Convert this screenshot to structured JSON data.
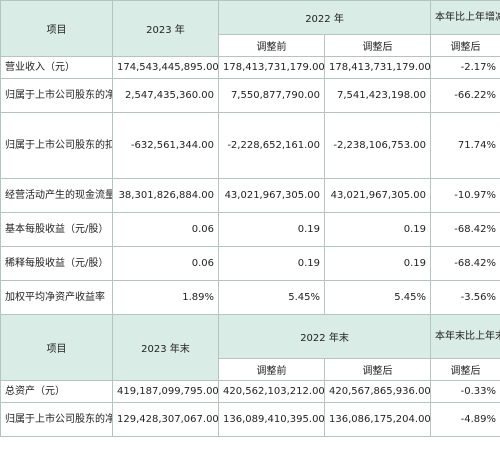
{
  "table1": {
    "header": {
      "item": "项目",
      "y2023": "2023 年",
      "y2022": "2022 年",
      "change": "本年比上年增减",
      "before": "调整前",
      "after": "调整后",
      "change_sub": "调整后"
    },
    "rows": [
      {
        "label": "营业收入（元）",
        "v2023": "174,543,445,895.00",
        "before": "178,413,731,179.00",
        "after": "178,413,731,179.00",
        "change": "-2.17%"
      },
      {
        "label": "归属于上市公司股东的净利润（元）",
        "v2023": "2,547,435,360.00",
        "before": "7,550,877,790.00",
        "after": "7,541,423,198.00",
        "change": "-66.22%"
      },
      {
        "label": "归属于上市公司股东的扣除非经常性损益的净利润（元）",
        "v2023": "-632,561,344.00",
        "before": "-2,228,652,161.00",
        "after": "-2,238,106,753.00",
        "change": "71.74%"
      },
      {
        "label": "经营活动产生的现金流量净额（元）",
        "v2023": "38,301,826,884.00",
        "before": "43,021,967,305.00",
        "after": "43,021,967,305.00",
        "change": "-10.97%"
      },
      {
        "label": "基本每股收益（元/股）",
        "v2023": "0.06",
        "before": "0.19",
        "after": "0.19",
        "change": "-68.42%"
      },
      {
        "label": "稀释每股收益（元/股）",
        "v2023": "0.06",
        "before": "0.19",
        "after": "0.19",
        "change": "-68.42%"
      },
      {
        "label": "加权平均净资产收益率",
        "v2023": "1.89%",
        "before": "5.45%",
        "after": "5.45%",
        "change": "-3.56%"
      }
    ]
  },
  "table2": {
    "header": {
      "item": "项目",
      "y2023": "2023 年末",
      "y2022": "2022 年末",
      "change": "本年末比上年末增减",
      "before": "调整前",
      "after": "调整后",
      "change_sub": "调整后"
    },
    "rows": [
      {
        "label": "总资产（元）",
        "v2023": "419,187,099,795.00",
        "before": "420,562,103,212.00",
        "after": "420,567,865,936.00",
        "change": "-0.33%"
      },
      {
        "label": "归属于上市公司股东的净资产（元）",
        "v2023": "129,428,307,067.00",
        "before": "136,089,410,395.00",
        "after": "136,086,175,204.00",
        "change": "-4.89%"
      }
    ]
  }
}
